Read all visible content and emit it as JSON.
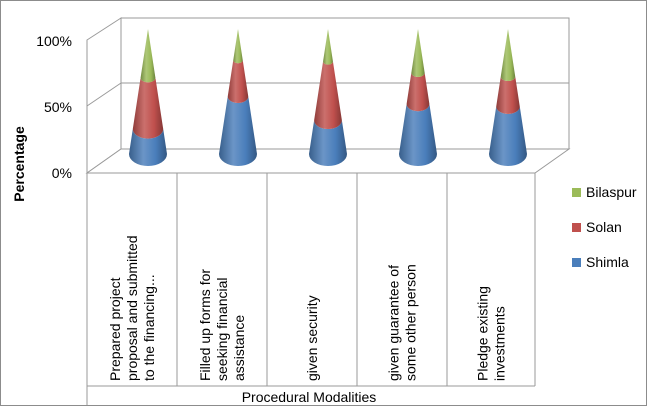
{
  "chart_data": {
    "type": "bar",
    "subtype": "3d-cone-stacked-100",
    "categories": [
      "Prepared project proposal and submitted to the financing...",
      "Filled up forms for seeking financial assistance",
      "given security",
      "given guarantee of some other person",
      "Pledge existing investments"
    ],
    "category_lines": [
      [
        "Prepared project",
        "proposal and submitted",
        "to the financing..."
      ],
      [
        "Filled up forms for",
        "seeking financial",
        "assistance"
      ],
      [
        "given security"
      ],
      [
        "given guarantee of",
        "some other person"
      ],
      [
        "Pledge existing",
        "investments"
      ]
    ],
    "series": [
      {
        "name": "Shimla",
        "color": "#4a7ebb",
        "values": [
          20,
          46,
          27,
          40,
          38
        ]
      },
      {
        "name": "Solan",
        "color": "#c0504d",
        "values": [
          41,
          29,
          47,
          25,
          24
        ]
      },
      {
        "name": "Bilaspur",
        "color": "#9bbb59",
        "values": [
          39,
          25,
          26,
          35,
          38
        ]
      }
    ],
    "yticks": [
      "0%",
      "50%",
      "100%"
    ],
    "ylim": [
      0,
      100
    ],
    "xlabel": "Procedural Modalities",
    "ylabel": "Percentage",
    "legend_position": "right",
    "legend_order": [
      "Bilaspur",
      "Solan",
      "Shimla"
    ]
  }
}
